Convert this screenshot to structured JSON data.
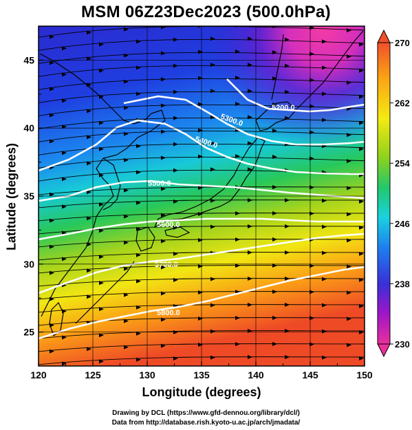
{
  "title": "MSM 06Z23Dec2023 (500.0hPa)",
  "x_axis": {
    "label": "Longitude (degrees)",
    "ticks": [
      "120",
      "125",
      "130",
      "135",
      "140",
      "145",
      "150"
    ],
    "range": [
      120,
      150
    ]
  },
  "y_axis": {
    "label": "Latitude  (degrees)",
    "ticks": [
      "25",
      "30",
      "35",
      "40",
      "45"
    ],
    "range": [
      22.5,
      47.5
    ]
  },
  "colorbar": {
    "ticks": [
      "270",
      "262",
      "254",
      "246",
      "238",
      "230"
    ],
    "range": [
      230,
      270
    ],
    "colors": [
      "#e8309c",
      "#a015c8",
      "#3a2fd8",
      "#1d80f0",
      "#19d2e0",
      "#22c86a",
      "#8fd21c",
      "#f4ea12",
      "#fba514",
      "#f0502a"
    ]
  },
  "contour_labels": [
    "5200.0",
    "5300.0",
    "5400.0",
    "5500.0",
    "5600.0",
    "5700.0",
    "5800.0"
  ],
  "credits": {
    "line1": "Drawing by DCL (https://www.gfd-dennou.org/library/dcl/)",
    "line2": "Data from http://database.rish.kyoto-u.ac.jp/arch/jmadata/"
  },
  "colors": {
    "contour": "#ffffff",
    "streamline": "#000000",
    "coastline": "#000000"
  }
}
